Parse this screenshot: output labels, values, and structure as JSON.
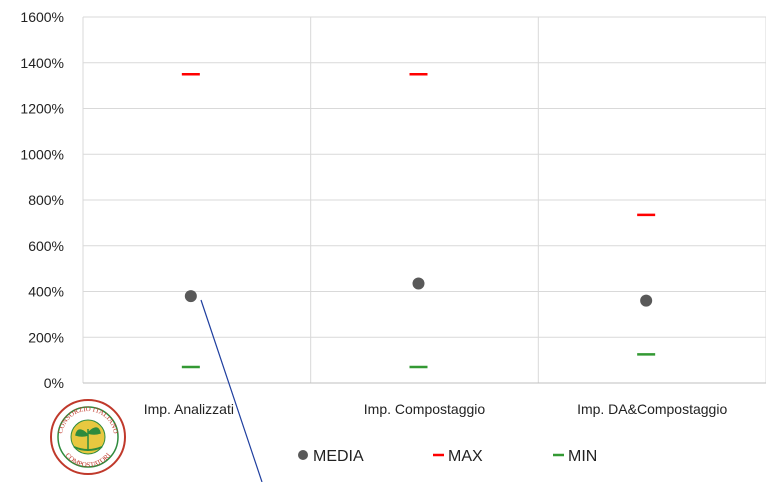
{
  "chart_data": {
    "type": "scatter",
    "categories": [
      "Imp. Analizzati",
      "Imp. Compostaggio",
      "Imp. DA&Compostaggio"
    ],
    "y_ticks": [
      "0%",
      "200%",
      "400%",
      "600%",
      "800%",
      "1000%",
      "1200%",
      "1400%",
      "1600%"
    ],
    "ylim": [
      0,
      1600
    ],
    "grid": "vertical category dividers",
    "legend_position": "bottom",
    "series": [
      {
        "name": "MEDIA",
        "marker": "circle",
        "color": "#595959",
        "values": [
          380,
          435,
          360
        ]
      },
      {
        "name": "MAX",
        "marker": "dash",
        "color": "#ff0000",
        "values": [
          1350,
          1350,
          735
        ]
      },
      {
        "name": "MIN",
        "marker": "dash",
        "color": "#339933",
        "values": [
          70,
          70,
          125
        ]
      }
    ]
  },
  "logo": {
    "text": "CONSORZIO ITALIANO COMPOSTATORI",
    "colors": [
      "#c0392b",
      "#2e8b3d",
      "#e8c840"
    ]
  }
}
